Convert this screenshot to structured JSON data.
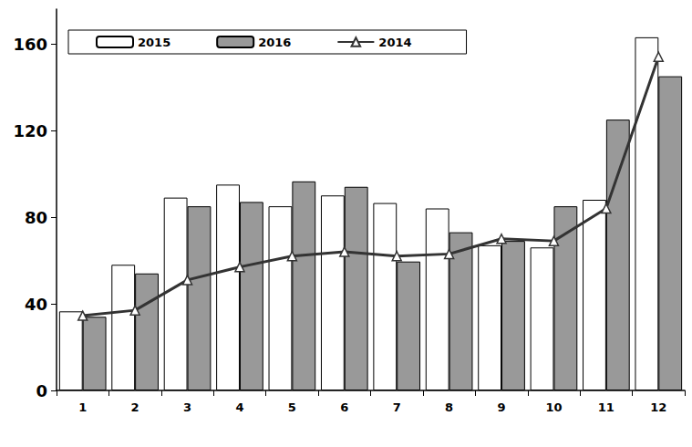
{
  "chart_data": {
    "type": "bar",
    "categories": [
      "1",
      "2",
      "3",
      "4",
      "5",
      "6",
      "7",
      "8",
      "9",
      "10",
      "11",
      "12"
    ],
    "series": [
      {
        "name": "2015",
        "type": "bar",
        "color": "#ffffff",
        "values": [
          36.5,
          58,
          89,
          95,
          85,
          90,
          86.5,
          84,
          67,
          66,
          88,
          163
        ]
      },
      {
        "name": "2016",
        "type": "bar",
        "color": "#999999",
        "values": [
          34,
          54,
          85,
          87,
          96.5,
          94,
          59.5,
          73,
          69,
          85,
          125,
          145
        ]
      },
      {
        "name": "2014",
        "type": "line",
        "color": "#333333",
        "marker": "triangle",
        "line_style": "solid",
        "values": [
          34.5,
          37,
          51,
          57,
          62,
          64,
          62,
          63,
          70,
          69,
          84,
          154
        ]
      }
    ],
    "ylim": [
      0,
      176
    ],
    "yticks": [
      0,
      40,
      80,
      120,
      160
    ],
    "grid": false,
    "legend": "top-left"
  }
}
